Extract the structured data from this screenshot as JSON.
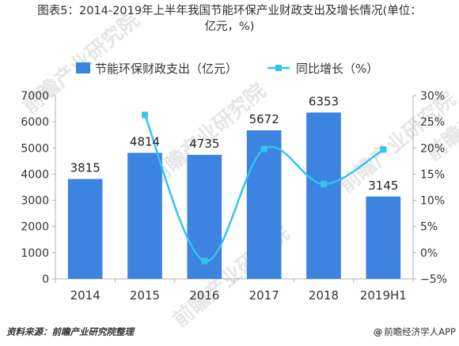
{
  "title_line1": "图表5：2014-2019年上半年我国节能环保产业财政支出及增长情况(单位：",
  "title_line2": "亿元，%)",
  "source": "资料来源：前瞻产业研究院整理",
  "brand": "前瞻经济学人APP",
  "brand_icon": "at-icon",
  "watermark": "前瞻产业研究院",
  "chart_data": {
    "type": "bar",
    "categories": [
      "2014",
      "2015",
      "2016",
      "2017",
      "2018",
      "2019H1"
    ],
    "series": [
      {
        "name": "节能环保财政支出（亿元）",
        "type": "bar",
        "axis": "left",
        "color": "#3d83e0",
        "values": [
          3815,
          4814,
          4735,
          5672,
          6353,
          3145
        ]
      },
      {
        "name": "同比增长（%）",
        "type": "line",
        "axis": "right",
        "color": "#33c4f0",
        "values": [
          null,
          26.3,
          -1.6,
          19.8,
          13.1,
          19.7
        ]
      }
    ],
    "y_left": {
      "min": 0,
      "max": 7000,
      "step": 1000
    },
    "y_right": {
      "min": -5,
      "max": 30,
      "step": 5,
      "suffix": "%"
    },
    "legend_position": "top-center",
    "grid": false
  }
}
